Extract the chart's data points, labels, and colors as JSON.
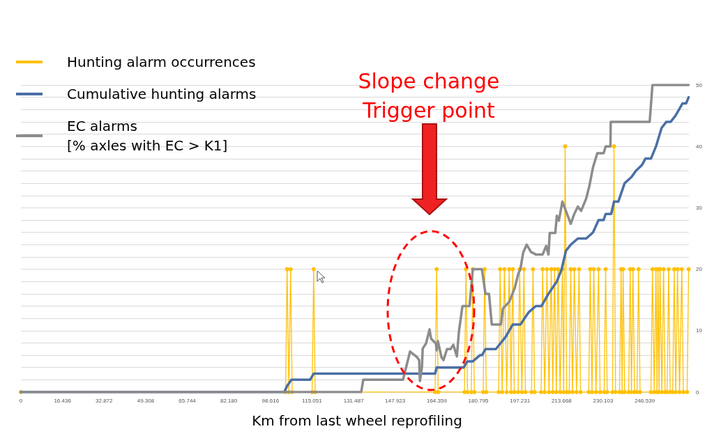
{
  "chart_data": {
    "type": "line",
    "xlabel": "Km from last wheel reprofiling",
    "annotations": [
      "Slope change\nTrigger point"
    ],
    "xlim": [
      0,
      264
    ],
    "xticks": [
      0,
      16.436,
      32.872,
      49.308,
      65.744,
      {
        "value": 82.18,
        "label": "82.180"
      },
      98.616,
      115.051,
      131.487,
      147.923,
      164.359,
      180.795,
      197.231,
      213.668,
      230.103,
      246.539
    ],
    "ylim": [
      0,
      50
    ],
    "yticks": [
      0,
      {
        "value": 2,
        "label": null
      },
      {
        "value": 4,
        "label": null
      },
      {
        "value": 6,
        "label": null
      },
      {
        "value": 8,
        "label": null
      },
      10,
      {
        "value": 12,
        "label": null
      },
      {
        "value": 14,
        "label": null
      },
      {
        "value": 16,
        "label": null
      },
      {
        "value": 18,
        "label": null
      },
      20,
      {
        "value": 22,
        "label": null
      },
      {
        "value": 24,
        "label": null
      },
      {
        "value": 26,
        "label": null
      },
      {
        "value": 28,
        "label": null
      },
      30,
      {
        "value": 32,
        "label": null
      },
      {
        "value": 34,
        "label": null
      },
      {
        "value": 36,
        "label": null
      },
      {
        "value": 38,
        "label": null
      },
      40,
      {
        "value": 42,
        "label": null
      },
      {
        "value": 44,
        "label": null
      },
      {
        "value": 46,
        "label": null
      },
      {
        "value": 48,
        "label": null
      },
      50
    ],
    "grid": "y",
    "legend": "top left",
    "series": [
      {
        "name": "Hunting alarm occurrences",
        "color": "#ffc000",
        "marker": "circle",
        "line_style": "dotted",
        "x": [
          0,
          104.6,
          105.2,
          105.9,
          106.6,
          107.2,
          115.1,
          115.7,
          116.3,
          163.7,
          164.3,
          164.9,
          175.3,
          175.9,
          176.5,
          178.0,
          178.6,
          179.2,
          182.7,
          183.3,
          183.9,
          188.8,
          189.4,
          190.2,
          191.1,
          192.0,
          193.0,
          193.7,
          194.4,
          195.0,
          196.5,
          197.1,
          198.0,
          198.8,
          199.4,
          201.8,
          202.4,
          203.0,
          205.6,
          206.2,
          207.0,
          207.9,
          208.7,
          209.6,
          210.2,
          210.9,
          211.6,
          212.3,
          213.1,
          214.0,
          214.5,
          215.1,
          215.7,
          216.7,
          217.3,
          218.0,
          218.7,
          219.6,
          220.6,
          221.2,
          224.4,
          225.0,
          225.7,
          226.4,
          227.3,
          228.3,
          228.9,
          230.5,
          231.1,
          231.7,
          233.8,
          234.4,
          235.0,
          236.6,
          237.2,
          237.6,
          238.0,
          238.6,
          240.2,
          240.8,
          241.3,
          241.9,
          242.5,
          243.5,
          244.1,
          244.7,
          249.0,
          249.6,
          250.3,
          251.0,
          251.4,
          251.8,
          252.2,
          252.6,
          253.3,
          254.0,
          254.6,
          255.4,
          256.0,
          256.6,
          257.6,
          258.2,
          258.8,
          259.5,
          260.3,
          261.2,
          261.8,
          263.3,
          263.9
        ],
        "values": [
          0,
          0,
          20,
          0,
          20,
          0,
          0,
          20,
          0,
          0,
          20,
          0,
          0,
          20,
          0,
          0,
          20,
          0,
          0,
          20,
          0,
          0,
          20,
          0,
          20,
          0,
          20,
          0,
          20,
          0,
          0,
          20,
          0,
          20,
          0,
          0,
          20,
          0,
          0,
          20,
          0,
          20,
          0,
          20,
          0,
          20,
          0,
          20,
          0,
          20,
          0,
          40,
          0,
          0,
          20,
          0,
          20,
          0,
          20,
          0,
          0,
          20,
          0,
          20,
          0,
          20,
          0,
          0,
          20,
          0,
          0,
          40,
          0,
          0,
          20,
          0,
          20,
          0,
          0,
          20,
          0,
          20,
          0,
          0,
          20,
          0,
          0,
          20,
          0,
          20,
          0,
          20,
          0,
          20,
          0,
          20,
          0,
          0,
          20,
          0,
          0,
          20,
          0,
          20,
          0,
          20,
          0,
          0,
          20
        ]
      },
      {
        "name": "Cumulative hunting alarms",
        "color": "#4a6fa5",
        "marker": "none",
        "line_style": "solid",
        "x": [
          0,
          104.1,
          105.2,
          106.9,
          114.3,
          115.7,
          163.7,
          164.3,
          175.0,
          176.4,
          178.6,
          181.4,
          182.2,
          183.6,
          187.7,
          191.6,
          194.4,
          197.4,
          200.7,
          203.5,
          205.7,
          208.5,
          211.8,
          213.7,
          215.4,
          217.3,
          220.1,
          223.4,
          226.1,
          228.3,
          230.3,
          231.1,
          233.3,
          234.4,
          236.1,
          238.6,
          241.3,
          243.0,
          245.5,
          246.8,
          249.0,
          251.0,
          253.2,
          255.1,
          256.8,
          258.7,
          261.5,
          262.9,
          263.9
        ],
        "values": [
          0,
          0,
          1,
          2,
          2,
          3,
          3,
          4,
          4,
          5,
          5,
          6,
          6,
          7,
          7,
          9,
          11,
          11,
          13,
          14,
          14,
          16,
          18,
          20,
          23,
          24,
          25,
          25,
          26,
          28,
          28,
          29,
          29,
          31,
          31,
          34,
          35,
          36,
          37,
          38,
          38,
          40,
          43,
          44,
          44,
          45,
          47,
          47,
          48
        ]
      },
      {
        "name": "EC alarms\n[% axles with EC > K1]",
        "color": "#8c8c8c",
        "marker": "none",
        "line_style": "solid",
        "x": [
          0,
          134.5,
          135.3,
          151.0,
          153.8,
          156.5,
          157.4,
          157.7,
          158.5,
          158.8,
          160.1,
          161.5,
          162.1,
          164.0,
          164.3,
          164.8,
          166.2,
          167.0,
          168.4,
          169.8,
          170.9,
          172.3,
          173.1,
          174.5,
          177.3,
          178.6,
          182.2,
          183.6,
          185.0,
          186.1,
          189.7,
          190.5,
          193.0,
          195.2,
          196.6,
          197.4,
          198.5,
          199.9,
          201.6,
          203.5,
          206.2,
          207.6,
          208.5,
          209.0,
          211.2,
          211.8,
          212.6,
          214.0,
          215.4,
          217.3,
          218.7,
          220.1,
          221.4,
          223.4,
          224.7,
          226.1,
          227.8,
          230.3,
          231.1,
          233.0,
          233.1,
          248.5,
          249.6,
          263.9
        ],
        "values": [
          0,
          0,
          2,
          2,
          6.6,
          5.7,
          5.2,
          1.8,
          4.1,
          7.1,
          7.9,
          10.2,
          8.7,
          7.9,
          6.8,
          8.3,
          5.7,
          5.2,
          7,
          7,
          7.7,
          5.8,
          9.8,
          14,
          14,
          20,
          20,
          16,
          16,
          11,
          11,
          13.6,
          14.7,
          17,
          19.3,
          20,
          22.7,
          24,
          22.8,
          22.4,
          22.4,
          23.8,
          22.4,
          25.9,
          25.9,
          28.7,
          27.9,
          31,
          29.5,
          27.4,
          29,
          30.2,
          29.5,
          31.5,
          33.6,
          36.6,
          38.9,
          38.9,
          40,
          40,
          44,
          44,
          50,
          50
        ]
      }
    ]
  }
}
